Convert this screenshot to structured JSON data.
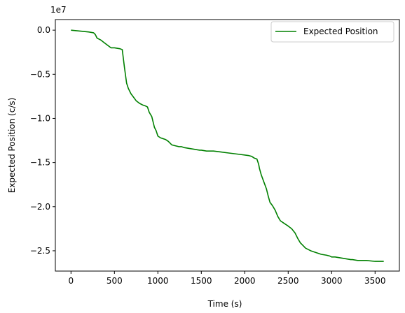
{
  "chart_data": {
    "type": "line",
    "title": "",
    "xlabel": "Time (s)",
    "ylabel": "Expected Position (c/s)",
    "y_offset_label": "1e7",
    "y_scale_factor": 10000000,
    "xlim": [
      -180,
      3780
    ],
    "ylim": [
      -2.73,
      0.12
    ],
    "x_ticks": [
      0,
      500,
      1000,
      1500,
      2000,
      2500,
      3000,
      3500
    ],
    "x_tick_labels": [
      "0",
      "500",
      "1000",
      "1500",
      "2000",
      "2500",
      "3000",
      "3500"
    ],
    "y_ticks": [
      0.0,
      -0.5,
      -1.0,
      -1.5,
      -2.0,
      -2.5
    ],
    "y_tick_labels": [
      "0.0",
      "−0.5",
      "−1.0",
      "−1.5",
      "−2.0",
      "−2.5"
    ],
    "grid": false,
    "legend_position": "top-right",
    "series": [
      {
        "name": "Expected Position",
        "color": "#008000",
        "x": [
          0,
          100,
          200,
          260,
          280,
          300,
          340,
          380,
          420,
          460,
          500,
          560,
          590,
          600,
          615,
          640,
          660,
          690,
          720,
          750,
          790,
          830,
          860,
          880,
          900,
          930,
          960,
          980,
          1000,
          1030,
          1060,
          1090,
          1120,
          1160,
          1200,
          1240,
          1270,
          1300,
          1360,
          1420,
          1480,
          1500,
          1560,
          1640,
          1720,
          1800,
          1880,
          1960,
          2040,
          2080,
          2110,
          2140,
          2160,
          2170,
          2190,
          2220,
          2250,
          2270,
          2290,
          2320,
          2350,
          2380,
          2410,
          2440,
          2470,
          2500,
          2540,
          2580,
          2610,
          2640,
          2670,
          2700,
          2760,
          2820,
          2880,
          2940,
          2980,
          3000,
          3040,
          3100,
          3160,
          3220,
          3240,
          3300,
          3400,
          3500,
          3550,
          3600
        ],
        "y": [
          0.0,
          -0.01,
          -0.02,
          -0.03,
          -0.05,
          -0.09,
          -0.11,
          -0.14,
          -0.17,
          -0.2,
          -0.2,
          -0.21,
          -0.22,
          -0.3,
          -0.42,
          -0.6,
          -0.66,
          -0.72,
          -0.76,
          -0.8,
          -0.83,
          -0.85,
          -0.86,
          -0.87,
          -0.93,
          -0.98,
          -1.1,
          -1.14,
          -1.2,
          -1.22,
          -1.23,
          -1.24,
          -1.26,
          -1.3,
          -1.31,
          -1.32,
          -1.32,
          -1.33,
          -1.34,
          -1.35,
          -1.36,
          -1.36,
          -1.37,
          -1.37,
          -1.38,
          -1.39,
          -1.4,
          -1.41,
          -1.42,
          -1.43,
          -1.45,
          -1.46,
          -1.52,
          -1.57,
          -1.64,
          -1.72,
          -1.8,
          -1.88,
          -1.95,
          -1.99,
          -2.04,
          -2.11,
          -2.16,
          -2.18,
          -2.2,
          -2.22,
          -2.25,
          -2.3,
          -2.36,
          -2.41,
          -2.44,
          -2.47,
          -2.5,
          -2.52,
          -2.54,
          -2.55,
          -2.56,
          -2.57,
          -2.57,
          -2.58,
          -2.59,
          -2.6,
          -2.6,
          -2.61,
          -2.61,
          -2.62,
          -2.62,
          -2.62
        ]
      }
    ]
  }
}
